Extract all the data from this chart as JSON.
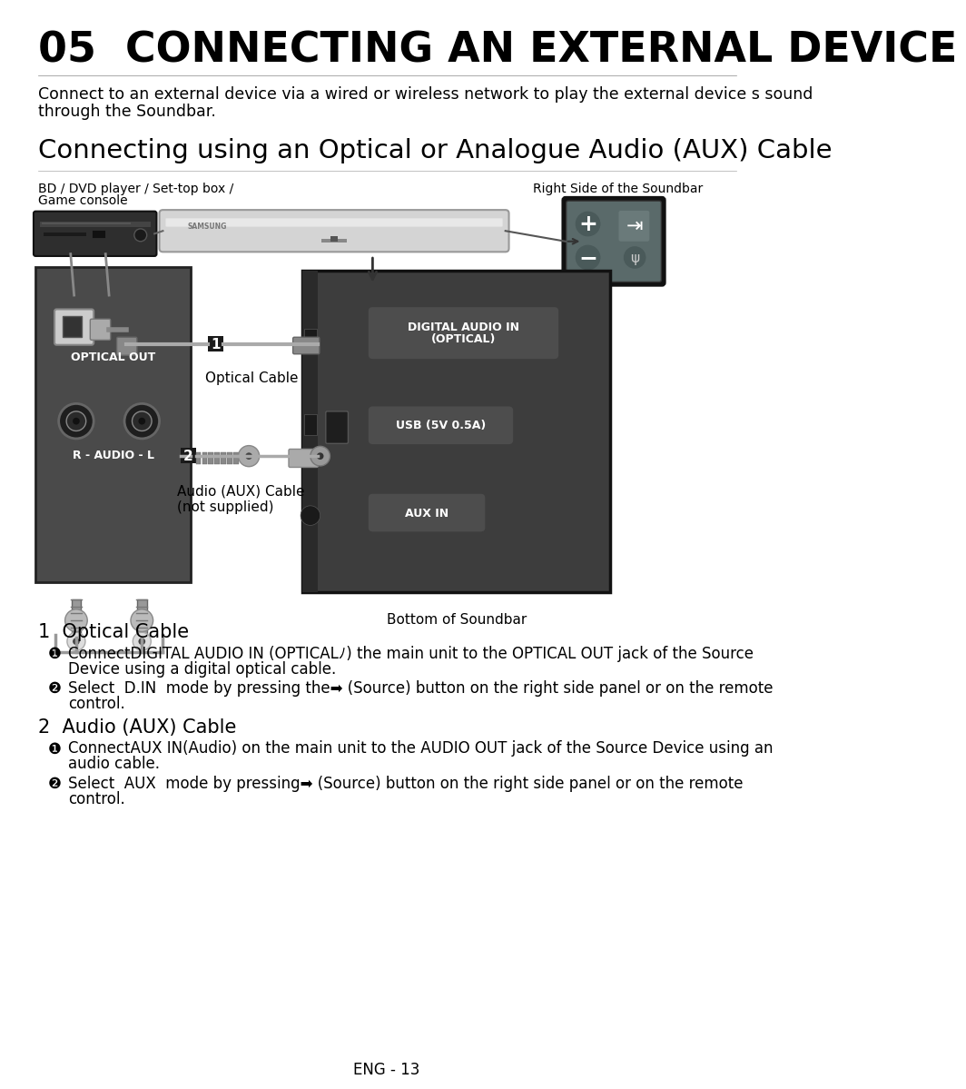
{
  "title": "05  CONNECTING AN EXTERNAL DEVICE",
  "subtitle_line1": "Connect to an external device via a wired or wireless network to play the external device s sound",
  "subtitle_line2": "through the Soundbar.",
  "section_title": "Connecting using an Optical or Analogue Audio (AUX) Cable",
  "label_bd_line1": "BD / DVD player / Set-top box /",
  "label_bd_line2": "Game console",
  "label_right_side": "Right Side of the Soundbar",
  "label_optical_out": "OPTICAL OUT",
  "label_optical_cable": "Optical Cable",
  "label_audio_aux_cable_line1": "Audio (AUX) Cable",
  "label_audio_aux_cable_line2": "(not supplied)",
  "label_bottom_soundbar": "Bottom of Soundbar",
  "label_digital_audio_line1": "DIGITAL AUDIO IN",
  "label_digital_audio_line2": "(OPTICAL)",
  "label_usb": "USB (5V 0.5A)",
  "label_aux_in": "AUX IN",
  "label_r_audio_l": "R - AUDIO - L",
  "section1_title": "1  Optical Cable",
  "section2_title": "2  Audio (AUX) Cable",
  "footer": "ENG - 13",
  "bg_color": "#ffffff",
  "text_color": "#000000",
  "dark_gray": "#3d3d3d",
  "mid_gray": "#5a5a5a",
  "light_gray": "#c8c8c8",
  "panel_bg": "#4a4a4a",
  "badge_bg": "#1a1a1a",
  "port_label_bg": "#4d4d4d",
  "port_label_text": "#ffffff",
  "soundbar_body": "#d4d4d4",
  "soundbar_top": "#e8e8e8",
  "rsp_bg": "#5a6a6a"
}
